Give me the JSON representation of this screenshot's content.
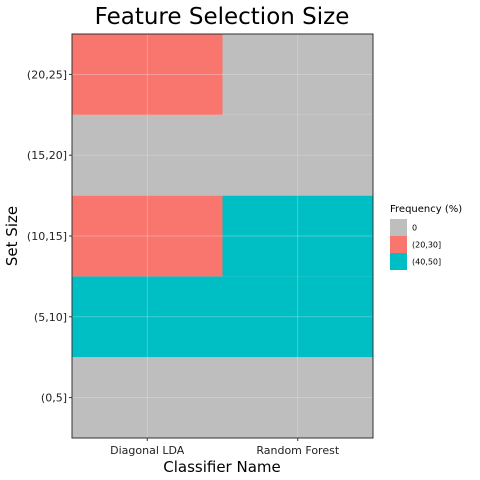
{
  "chart_data": {
    "type": "heatmap",
    "title": "Feature Selection Size",
    "xlabel": "Classifier Name",
    "ylabel": "Set Size",
    "x_categories": [
      "Diagonal LDA",
      "Random Forest"
    ],
    "y_categories": [
      "(0,5]",
      "(5,10]",
      "(10,15]",
      "(15,20]",
      "(20,25]"
    ],
    "cells": [
      {
        "x": "Diagonal LDA",
        "y": "(0,5]",
        "bin": "0"
      },
      {
        "x": "Diagonal LDA",
        "y": "(5,10]",
        "bin": "(40,50]"
      },
      {
        "x": "Diagonal LDA",
        "y": "(10,15]",
        "bin": "(20,30]"
      },
      {
        "x": "Diagonal LDA",
        "y": "(15,20]",
        "bin": "0"
      },
      {
        "x": "Diagonal LDA",
        "y": "(20,25]",
        "bin": "(20,30]"
      },
      {
        "x": "Random Forest",
        "y": "(0,5]",
        "bin": "0"
      },
      {
        "x": "Random Forest",
        "y": "(5,10]",
        "bin": "(40,50]"
      },
      {
        "x": "Random Forest",
        "y": "(10,15]",
        "bin": "(40,50]"
      },
      {
        "x": "Random Forest",
        "y": "(15,20]",
        "bin": "0"
      },
      {
        "x": "Random Forest",
        "y": "(20,25]",
        "bin": "0"
      }
    ],
    "legend": {
      "title": "Frequency (%)",
      "position": "right",
      "entries": [
        {
          "label": "0",
          "color": "#bebebe"
        },
        {
          "label": "(20,30]",
          "color": "#f8766d"
        },
        {
          "label": "(40,50]",
          "color": "#00bfc4"
        }
      ]
    },
    "grid": true
  }
}
